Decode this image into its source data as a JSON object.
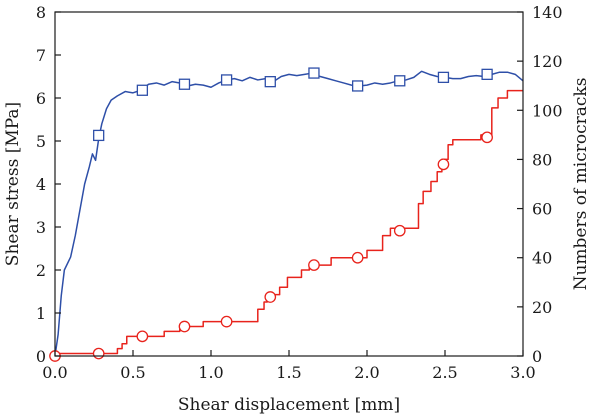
{
  "chart_data": {
    "type": "line",
    "xlabel": "Shear displacement [mm]",
    "ylabel_left": "Shear stress [MPa]",
    "ylabel_right": "Numbers of microcracks",
    "xlim": [
      0,
      3.0
    ],
    "ylim_left": [
      0,
      8
    ],
    "ylim_right": [
      0,
      140
    ],
    "x_ticks": [
      "0.0",
      "0.5",
      "1.0",
      "1.5",
      "2.0",
      "2.5",
      "3.0"
    ],
    "y_left_ticks": [
      "0",
      "1",
      "2",
      "3",
      "4",
      "5",
      "6",
      "7",
      "8"
    ],
    "y_right_ticks": [
      "0",
      "20",
      "40",
      "60",
      "80",
      "100",
      "120",
      "140"
    ],
    "grid": false,
    "series": [
      {
        "axis": "left",
        "color": "#2e4fa8",
        "marker": "square",
        "line": [
          [
            0.0,
            0.0
          ],
          [
            0.02,
            0.5
          ],
          [
            0.04,
            1.4
          ],
          [
            0.06,
            2.0
          ],
          [
            0.1,
            2.3
          ],
          [
            0.13,
            2.8
          ],
          [
            0.16,
            3.4
          ],
          [
            0.19,
            4.0
          ],
          [
            0.22,
            4.4
          ],
          [
            0.24,
            4.7
          ],
          [
            0.26,
            4.55
          ],
          [
            0.28,
            5.05
          ],
          [
            0.3,
            5.4
          ],
          [
            0.33,
            5.75
          ],
          [
            0.36,
            5.95
          ],
          [
            0.4,
            6.05
          ],
          [
            0.45,
            6.15
          ],
          [
            0.5,
            6.12
          ],
          [
            0.55,
            6.18
          ],
          [
            0.6,
            6.32
          ],
          [
            0.65,
            6.35
          ],
          [
            0.7,
            6.3
          ],
          [
            0.75,
            6.38
          ],
          [
            0.8,
            6.35
          ],
          [
            0.85,
            6.28
          ],
          [
            0.9,
            6.32
          ],
          [
            0.95,
            6.3
          ],
          [
            1.0,
            6.25
          ],
          [
            1.05,
            6.35
          ],
          [
            1.1,
            6.42
          ],
          [
            1.15,
            6.45
          ],
          [
            1.2,
            6.4
          ],
          [
            1.25,
            6.48
          ],
          [
            1.3,
            6.42
          ],
          [
            1.35,
            6.45
          ],
          [
            1.4,
            6.38
          ],
          [
            1.45,
            6.5
          ],
          [
            1.5,
            6.55
          ],
          [
            1.55,
            6.52
          ],
          [
            1.6,
            6.55
          ],
          [
            1.65,
            6.58
          ],
          [
            1.7,
            6.5
          ],
          [
            1.75,
            6.45
          ],
          [
            1.8,
            6.4
          ],
          [
            1.85,
            6.35
          ],
          [
            1.9,
            6.3
          ],
          [
            1.95,
            6.28
          ],
          [
            2.0,
            6.3
          ],
          [
            2.05,
            6.35
          ],
          [
            2.1,
            6.32
          ],
          [
            2.15,
            6.35
          ],
          [
            2.2,
            6.4
          ],
          [
            2.25,
            6.42
          ],
          [
            2.3,
            6.48
          ],
          [
            2.35,
            6.62
          ],
          [
            2.4,
            6.55
          ],
          [
            2.45,
            6.5
          ],
          [
            2.5,
            6.48
          ],
          [
            2.55,
            6.45
          ],
          [
            2.6,
            6.45
          ],
          [
            2.65,
            6.5
          ],
          [
            2.7,
            6.52
          ],
          [
            2.75,
            6.5
          ],
          [
            2.8,
            6.55
          ],
          [
            2.85,
            6.6
          ],
          [
            2.9,
            6.6
          ],
          [
            2.95,
            6.55
          ],
          [
            3.0,
            6.4
          ]
        ],
        "markers": [
          [
            0.28,
            5.13
          ],
          [
            0.56,
            6.18
          ],
          [
            0.83,
            6.32
          ],
          [
            1.1,
            6.42
          ],
          [
            1.38,
            6.38
          ],
          [
            1.66,
            6.58
          ],
          [
            1.94,
            6.28
          ],
          [
            2.21,
            6.4
          ],
          [
            2.49,
            6.48
          ],
          [
            2.77,
            6.55
          ]
        ]
      },
      {
        "axis": "right",
        "color": "#e8231c",
        "marker": "circle",
        "line": [
          [
            0.0,
            1
          ],
          [
            0.4,
            1
          ],
          [
            0.4,
            3
          ],
          [
            0.43,
            3
          ],
          [
            0.43,
            5
          ],
          [
            0.46,
            5
          ],
          [
            0.46,
            8
          ],
          [
            0.7,
            8
          ],
          [
            0.7,
            10
          ],
          [
            0.8,
            10
          ],
          [
            0.8,
            12
          ],
          [
            0.95,
            12
          ],
          [
            0.95,
            14
          ],
          [
            1.3,
            14
          ],
          [
            1.3,
            19
          ],
          [
            1.34,
            19
          ],
          [
            1.34,
            22
          ],
          [
            1.36,
            22
          ],
          [
            1.36,
            25
          ],
          [
            1.44,
            25
          ],
          [
            1.44,
            28
          ],
          [
            1.49,
            28
          ],
          [
            1.49,
            32
          ],
          [
            1.58,
            32
          ],
          [
            1.58,
            35
          ],
          [
            1.63,
            35
          ],
          [
            1.63,
            37
          ],
          [
            1.77,
            37
          ],
          [
            1.77,
            40
          ],
          [
            2.0,
            40
          ],
          [
            2.0,
            43
          ],
          [
            2.1,
            43
          ],
          [
            2.1,
            49
          ],
          [
            2.15,
            49
          ],
          [
            2.15,
            52
          ],
          [
            2.33,
            52
          ],
          [
            2.33,
            62
          ],
          [
            2.36,
            62
          ],
          [
            2.36,
            67
          ],
          [
            2.41,
            67
          ],
          [
            2.41,
            71
          ],
          [
            2.45,
            71
          ],
          [
            2.45,
            75
          ],
          [
            2.48,
            75
          ],
          [
            2.48,
            80
          ],
          [
            2.52,
            80
          ],
          [
            2.52,
            86
          ],
          [
            2.55,
            86
          ],
          [
            2.55,
            88
          ],
          [
            2.73,
            88
          ],
          [
            2.73,
            90
          ],
          [
            2.8,
            90
          ],
          [
            2.8,
            101
          ],
          [
            2.84,
            101
          ],
          [
            2.84,
            105
          ],
          [
            2.9,
            105
          ],
          [
            2.9,
            108
          ],
          [
            3.0,
            108
          ]
        ],
        "markers": [
          [
            0.0,
            0
          ],
          [
            0.28,
            1
          ],
          [
            0.56,
            8
          ],
          [
            0.83,
            12
          ],
          [
            1.1,
            14
          ],
          [
            1.38,
            24
          ],
          [
            1.66,
            37
          ],
          [
            1.94,
            40
          ],
          [
            2.21,
            51
          ],
          [
            2.49,
            78
          ],
          [
            2.77,
            89
          ]
        ]
      }
    ]
  }
}
